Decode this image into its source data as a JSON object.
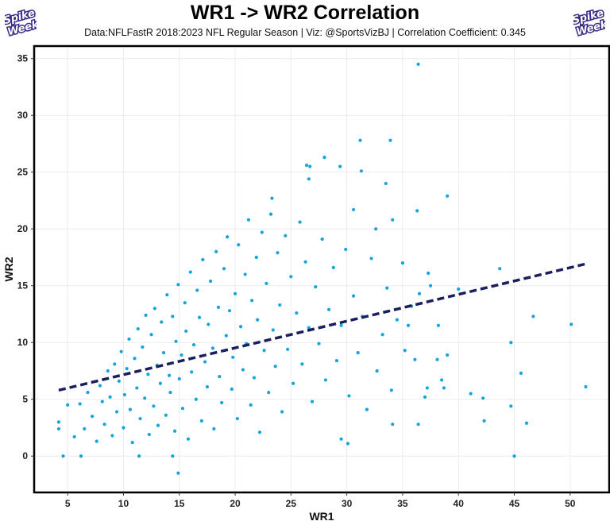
{
  "header": {
    "title": "WR1 -> WR2 Correlation",
    "subtitle": "Data:NFLFastR 2018:2023 NFL Regular Season | Viz: @SportsVizBJ | Correlation Coefficient: 0.345",
    "logo_text": "Spike Week"
  },
  "chart_data": {
    "type": "scatter",
    "title": "WR1 -> WR2 Correlation",
    "xlabel": "WR1",
    "ylabel": "WR2",
    "xlim": [
      2,
      53.5
    ],
    "ylim": [
      -3.2,
      36.1
    ],
    "xticks": [
      5,
      10,
      15,
      20,
      25,
      30,
      35,
      40,
      45,
      50
    ],
    "yticks": [
      0,
      5,
      10,
      15,
      20,
      25,
      30,
      35
    ],
    "grid": true,
    "colors": {
      "points": "#12A5DD",
      "trend": "#1B1E5C",
      "grid": "#ececec",
      "frame": "#000000"
    },
    "correlation_coefficient": 0.345,
    "trend_line": {
      "style": "dashed",
      "x": [
        4.2,
        51.3
      ],
      "y": [
        5.8,
        16.9
      ]
    },
    "points": [
      [
        36.4,
        34.5
      ],
      [
        31.2,
        27.8
      ],
      [
        33.9,
        27.8
      ],
      [
        28,
        26.3
      ],
      [
        26.4,
        25.6
      ],
      [
        26.7,
        25.5
      ],
      [
        29.4,
        25.5
      ],
      [
        31.3,
        25.1
      ],
      [
        33.5,
        24
      ],
      [
        26.6,
        24.4
      ],
      [
        39,
        22.9
      ],
      [
        23.3,
        22.7
      ],
      [
        36.3,
        21.6
      ],
      [
        30.6,
        21.7
      ],
      [
        34.1,
        20.8
      ],
      [
        32.6,
        20
      ],
      [
        35,
        17
      ],
      [
        37.3,
        16.1
      ],
      [
        43.7,
        16.5
      ],
      [
        37.5,
        15
      ],
      [
        40,
        14.7
      ],
      [
        46.7,
        12.3
      ],
      [
        50.1,
        11.6
      ],
      [
        51.4,
        6.1
      ],
      [
        44.7,
        10
      ],
      [
        45.6,
        7.3
      ],
      [
        44.7,
        4.4
      ],
      [
        46.1,
        2.9
      ],
      [
        45,
        0
      ],
      [
        42.2,
        5.1
      ],
      [
        42.3,
        3.1
      ],
      [
        41.1,
        5.5
      ],
      [
        38.1,
        8.5
      ],
      [
        38.5,
        6.7
      ],
      [
        39,
        8.9
      ],
      [
        38.7,
        6
      ],
      [
        37.2,
        6
      ],
      [
        37,
        5.2
      ],
      [
        36.1,
        8.5
      ],
      [
        38.2,
        11.5
      ],
      [
        36.5,
        14.3
      ],
      [
        35.5,
        11.5
      ],
      [
        34.1,
        2.8
      ],
      [
        36.4,
        2.8
      ],
      [
        30.1,
        1.1
      ],
      [
        29.5,
        1.5
      ],
      [
        14.9,
        -1.5
      ],
      [
        4.6,
        0
      ],
      [
        6.2,
        0
      ],
      [
        11.4,
        0
      ],
      [
        14.4,
        0
      ],
      [
        4.2,
        3
      ],
      [
        4.2,
        2.4
      ],
      [
        5,
        4.5
      ],
      [
        6.5,
        2.4
      ],
      [
        5.6,
        1.7
      ],
      [
        6.1,
        4.6
      ],
      [
        6.8,
        5.6
      ],
      [
        7.2,
        3.5
      ],
      [
        7.6,
        1.3
      ],
      [
        7.9,
        6.2
      ],
      [
        8.1,
        4.8
      ],
      [
        8.3,
        2.8
      ],
      [
        8.6,
        7.5
      ],
      [
        8.8,
        5.2
      ],
      [
        9,
        1.8
      ],
      [
        9.2,
        8.1
      ],
      [
        9.4,
        3.9
      ],
      [
        9.6,
        6.6
      ],
      [
        9.8,
        9.2
      ],
      [
        10,
        2.5
      ],
      [
        10.1,
        5.4
      ],
      [
        10.3,
        7.7
      ],
      [
        10.5,
        10.3
      ],
      [
        10.6,
        4.1
      ],
      [
        10.8,
        1.2
      ],
      [
        11,
        8.6
      ],
      [
        11.2,
        6
      ],
      [
        11.3,
        11.2
      ],
      [
        11.5,
        3.3
      ],
      [
        11.7,
        9.6
      ],
      [
        11.9,
        5.1
      ],
      [
        12,
        12.4
      ],
      [
        12.2,
        7.2
      ],
      [
        12.3,
        1.9
      ],
      [
        12.5,
        10.7
      ],
      [
        12.7,
        4.4
      ],
      [
        12.8,
        13
      ],
      [
        13,
        8
      ],
      [
        13.1,
        2.7
      ],
      [
        13.3,
        6.4
      ],
      [
        13.4,
        11.8
      ],
      [
        13.6,
        9.1
      ],
      [
        13.8,
        3.6
      ],
      [
        13.9,
        14.2
      ],
      [
        14.1,
        7.1
      ],
      [
        14.2,
        5.6
      ],
      [
        14.4,
        12.3
      ],
      [
        14.6,
        2.2
      ],
      [
        14.7,
        10.1
      ],
      [
        14.9,
        15.1
      ],
      [
        15,
        6.8
      ],
      [
        15.2,
        8.9
      ],
      [
        15.3,
        4.2
      ],
      [
        15.5,
        13.5
      ],
      [
        15.6,
        11
      ],
      [
        15.8,
        1.5
      ],
      [
        16,
        16.2
      ],
      [
        16.1,
        7.4
      ],
      [
        16.3,
        9.8
      ],
      [
        16.5,
        5
      ],
      [
        16.6,
        14.6
      ],
      [
        16.8,
        12.2
      ],
      [
        17,
        3.1
      ],
      [
        17.1,
        17.3
      ],
      [
        17.3,
        8.3
      ],
      [
        17.5,
        6.1
      ],
      [
        17.6,
        11.6
      ],
      [
        17.8,
        15.4
      ],
      [
        18,
        9.5
      ],
      [
        18.1,
        2.4
      ],
      [
        18.3,
        18
      ],
      [
        18.5,
        13.1
      ],
      [
        18.6,
        7
      ],
      [
        18.8,
        4.7
      ],
      [
        19,
        16.5
      ],
      [
        19.2,
        10.6
      ],
      [
        19.3,
        19.3
      ],
      [
        19.5,
        12.8
      ],
      [
        19.7,
        5.9
      ],
      [
        19.8,
        8.7
      ],
      [
        20,
        14.3
      ],
      [
        20.2,
        3.3
      ],
      [
        20.3,
        18.6
      ],
      [
        20.5,
        11.4
      ],
      [
        20.7,
        7.6
      ],
      [
        20.9,
        16
      ],
      [
        21,
        9.9
      ],
      [
        21.2,
        20.8
      ],
      [
        21.4,
        4.5
      ],
      [
        21.5,
        13.7
      ],
      [
        21.7,
        6.9
      ],
      [
        21.9,
        17.5
      ],
      [
        22,
        12
      ],
      [
        22.2,
        2.1
      ],
      [
        22.4,
        19.7
      ],
      [
        22.6,
        9.3
      ],
      [
        22.8,
        15.2
      ],
      [
        23,
        5.6
      ],
      [
        23.2,
        21.3
      ],
      [
        23.4,
        11.1
      ],
      [
        23.6,
        7.9
      ],
      [
        23.8,
        17.9
      ],
      [
        24,
        13.3
      ],
      [
        24.2,
        3.9
      ],
      [
        24.5,
        19.4
      ],
      [
        24.7,
        9.4
      ],
      [
        25,
        15.8
      ],
      [
        25.2,
        6.4
      ],
      [
        25.5,
        12.6
      ],
      [
        25.8,
        20.6
      ],
      [
        26,
        8.1
      ],
      [
        26.3,
        17.1
      ],
      [
        26.6,
        11.3
      ],
      [
        26.9,
        4.8
      ],
      [
        27.2,
        14.9
      ],
      [
        27.5,
        9.9
      ],
      [
        27.8,
        19.1
      ],
      [
        28.1,
        6.7
      ],
      [
        28.4,
        12.9
      ],
      [
        28.8,
        16.6
      ],
      [
        29.1,
        8.4
      ],
      [
        29.5,
        11.5
      ],
      [
        29.9,
        18.2
      ],
      [
        30.2,
        5.3
      ],
      [
        30.6,
        14.1
      ],
      [
        31,
        9.1
      ],
      [
        31.4,
        12.3
      ],
      [
        31.8,
        4.1
      ],
      [
        32.2,
        17.4
      ],
      [
        32.7,
        7.5
      ],
      [
        33.2,
        10.7
      ],
      [
        33.6,
        14.8
      ],
      [
        34,
        5.8
      ],
      [
        34.5,
        12
      ],
      [
        35.2,
        9.3
      ],
      [
        35.8,
        13.2
      ]
    ]
  }
}
